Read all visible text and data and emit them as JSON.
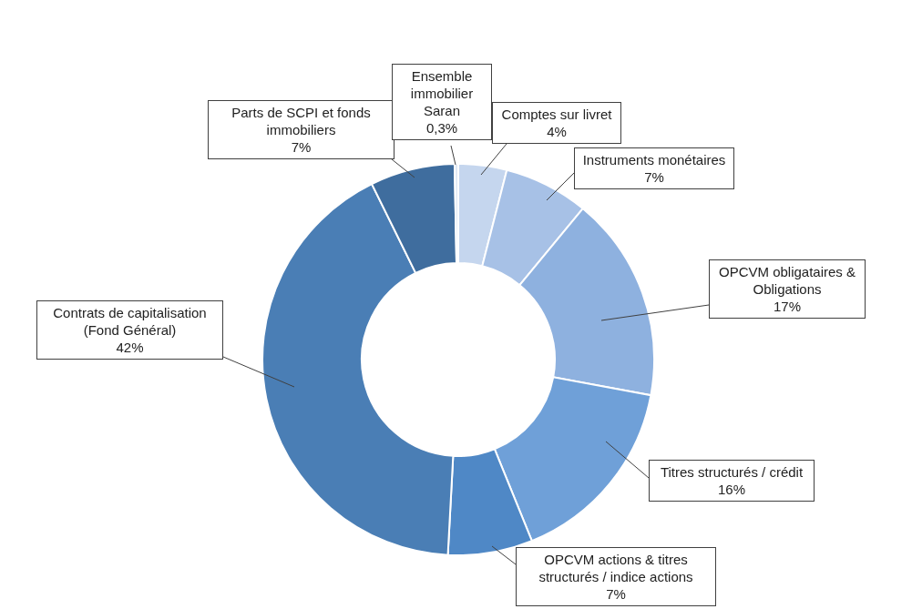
{
  "chart_data": {
    "type": "donut",
    "categories": [
      "Comptes sur livret",
      "Instruments monétaires",
      "OPCVM obligataires & Obligations",
      "Titres structurés / crédit",
      "OPCVM actions & titres structurés / indice actions",
      "Contrats de capitalisation (Fond Général)",
      "Parts de SCPI et fonds immobiliers",
      "Ensemble immobilier Saran"
    ],
    "values": [
      4,
      7,
      17,
      16,
      7,
      42,
      7,
      0.3
    ],
    "value_labels": [
      "4%",
      "7%",
      "17%",
      "16%",
      "7%",
      "42%",
      "7%",
      "0,3%"
    ],
    "colors": [
      "#c5d6ee",
      "#a7c1e6",
      "#8eb1df",
      "#6fa0d8",
      "#4f88c6",
      "#4a7eb5",
      "#3f6d9e",
      "#dfe8f4"
    ]
  }
}
